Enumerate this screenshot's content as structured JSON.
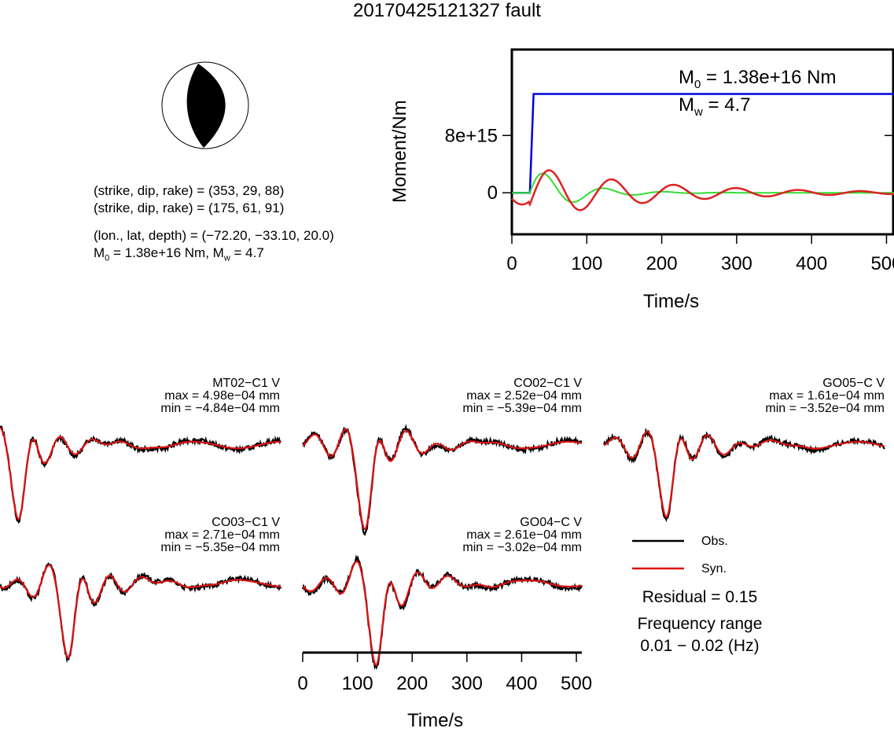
{
  "title": "20170425121327 fault",
  "focal": {
    "plane1": "(strike, dip, rake) = (353, 29, 88)",
    "plane2": "(strike, dip, rake) = (175, 61, 91)",
    "location": "(lon., lat, depth) = (−72.20, −33.10, 20.0)",
    "moment_prefix": "M",
    "moment_rest": " = 1.38e+16 Nm, M",
    "mw_rest": " = 4.7",
    "sub0": "0",
    "subw": "w"
  },
  "moment_plot": {
    "ylabel": "Moment/Nm",
    "xlabel": "Time/s",
    "ytick_labels": [
      "0",
      "8e+15"
    ],
    "xtick_labels": [
      "0",
      "100",
      "200",
      "300",
      "400",
      "500"
    ],
    "annot_m0_main": "M",
    "annot_m0_sub": "0",
    "annot_m0_rest": " = 1.38e+16 Nm",
    "annot_mw_main": "M",
    "annot_mw_sub": "w",
    "annot_mw_rest": " = 4.7",
    "colors": {
      "moment": "#0000dd",
      "green": "#33dd33",
      "red": "#dd2222"
    }
  },
  "chart_data": [
    {
      "type": "line",
      "title": "",
      "xlabel": "Time/s",
      "ylabel": "Moment/Nm",
      "xlim": [
        0,
        510
      ],
      "ylim": [
        -5800000000000000.0,
        2e+16
      ],
      "series": [
        {
          "values_x": [
            0,
            24,
            29,
            510
          ],
          "values_y": [
            0,
            0,
            1.38e+16,
            1.38e+16
          ]
        }
      ]
    },
    {
      "type": "line",
      "xlabel": "Time/s",
      "xlim": [
        0,
        510
      ],
      "traces": [
        {
          "station": "MT02−C1 V",
          "max": "max = 4.98e−04 mm",
          "min": "min = −4.84e−04 mm"
        },
        {
          "station": "CO02−C1 V",
          "max": "max = 2.52e−04 mm",
          "min": "min = −5.39e−04 mm"
        },
        {
          "station": "GO05−C V",
          "max": "max = 1.61e−04 mm",
          "min": "min = −3.52e−04 mm"
        },
        {
          "station": "CO03−C1 V",
          "max": "max = 2.71e−04 mm",
          "min": "min = −5.35e−04 mm"
        },
        {
          "station": "GO04−C V",
          "max": "max = 2.61e−04 mm",
          "min": "min = −3.02e−04 mm"
        }
      ],
      "xtick_labels": [
        "0",
        "100",
        "200",
        "300",
        "400",
        "500"
      ]
    }
  ],
  "legend": {
    "obs": "Obs.",
    "syn": "Syn.",
    "residual": "Residual = 0.15",
    "freq_title": "Frequency range",
    "freq_value": "0.01 − 0.02 (Hz)",
    "obs_color": "#000000",
    "syn_color": "#dd1111"
  }
}
